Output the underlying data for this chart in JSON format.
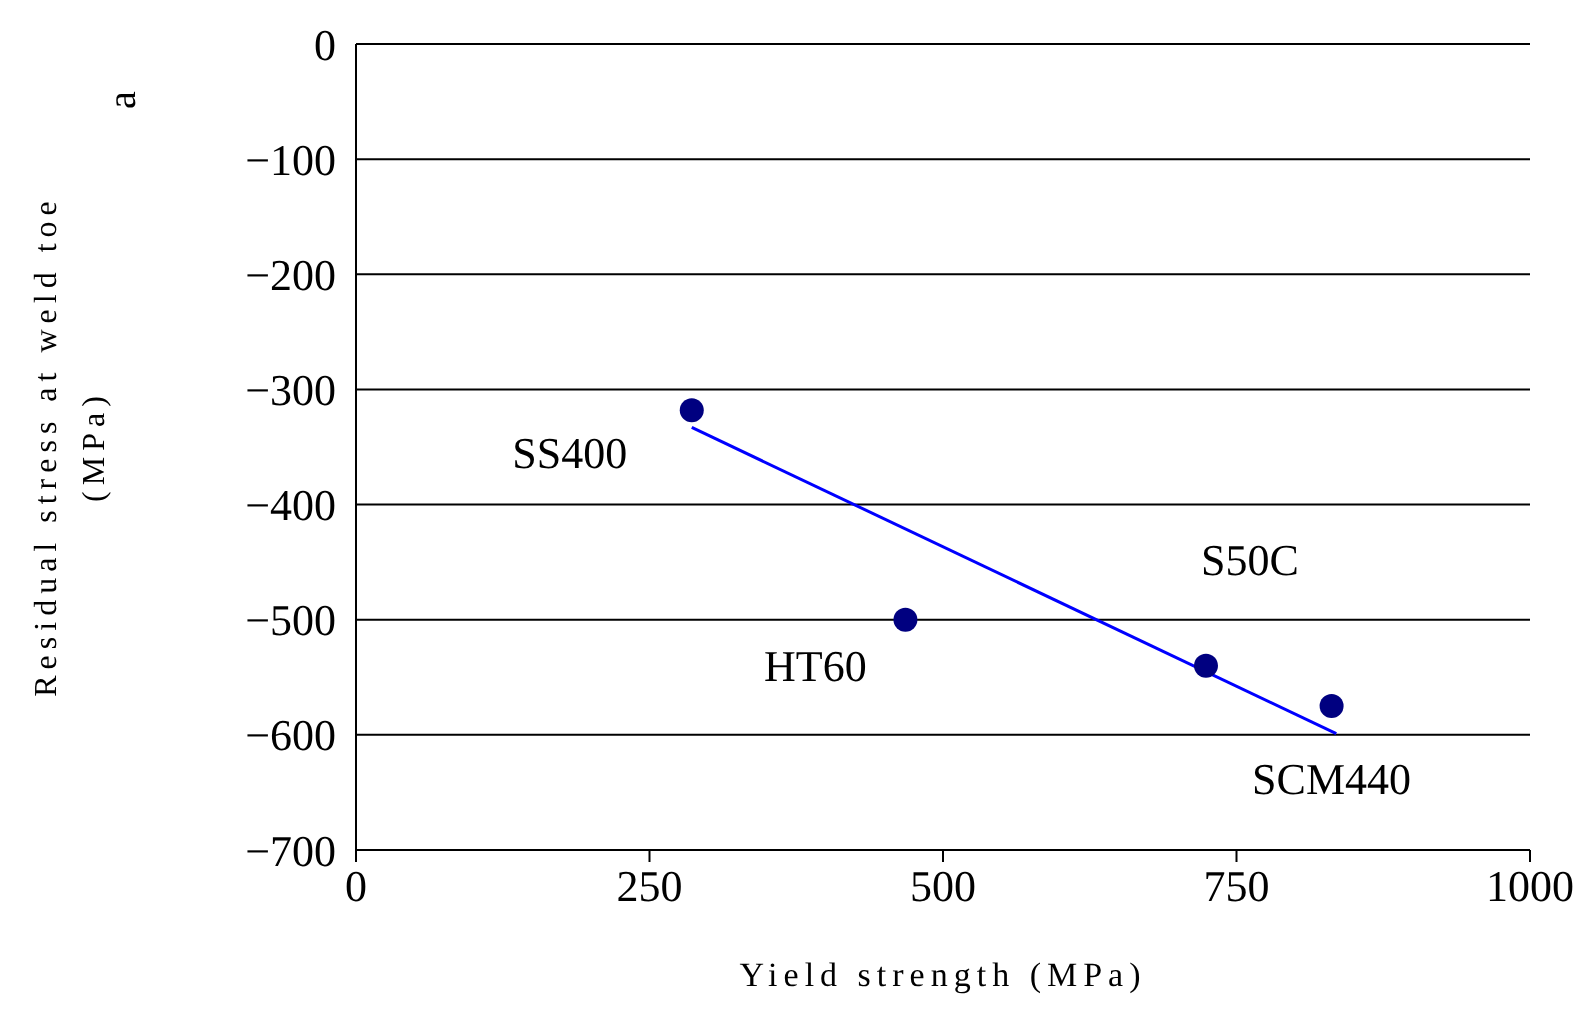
{
  "chart_data": {
    "type": "scatter",
    "xlabel": "Yield strength (MPa)",
    "ylabel": "Residual stress at weld toe\n(MPa)",
    "xlim": [
      0,
      1000
    ],
    "xticks": [
      0,
      250,
      500,
      750,
      1000
    ],
    "ylim": [
      -700,
      0
    ],
    "yticks": [
      0,
      -100,
      -200,
      -300,
      -400,
      -500,
      -600,
      -700
    ],
    "grid": "y",
    "series": [
      {
        "marker": "circle",
        "color": "#000080",
        "x": [
          286,
          468,
          724,
          831
        ],
        "values": [
          -318,
          -500,
          -540,
          -575
        ]
      },
      {
        "type": "line",
        "color": "#0000ff",
        "x": [
          286,
          835
        ],
        "values": [
          -333,
          -599
        ]
      }
    ],
    "annotations": [
      {
        "text": "SS400",
        "x": 286,
        "y": -318
      },
      {
        "text": "HT60",
        "x": 468,
        "y": -500
      },
      {
        "text": "S50C",
        "x": 724,
        "y": -540
      },
      {
        "text": "SCM440",
        "x": 831,
        "y": -575
      },
      "a"
    ]
  }
}
